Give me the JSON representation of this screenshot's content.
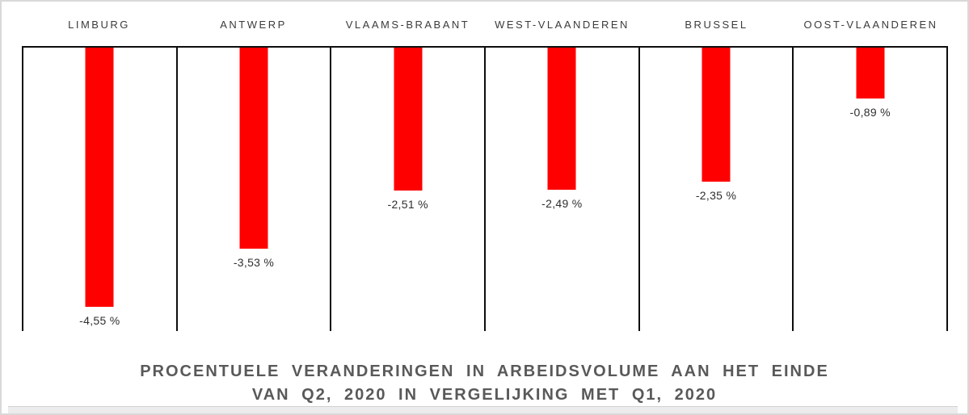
{
  "window": {
    "background": "#ffffff",
    "outer_border_color": "#d9d9d9"
  },
  "chart_data": {
    "type": "bar",
    "title": "PROCENTUELE VERANDERINGEN IN ARBEIDSVOLUME AAN HET EINDE VAN Q2, 2020 IN VERGELIJKING MET Q1, 2020",
    "title_line1": "PROCENTUELE VERANDERINGEN IN ARBEIDSVOLUME AAN HET EINDE",
    "title_line2": "VAN Q2, 2020 IN VERGELIJKING MET Q1, 2020",
    "categories": [
      "LIMBURG",
      "ANTWERP",
      "VLAAMS-BRABANT",
      "WEST-VLAANDEREN",
      "BRUSSEL",
      "OOST-VLAANDEREN"
    ],
    "values": [
      -4.55,
      -3.53,
      -2.51,
      -2.49,
      -2.35,
      -0.89
    ],
    "value_labels": [
      "-4,55 %",
      "-3,53 %",
      "-2,51 %",
      "-2,49 %",
      "-2,35 %",
      "-0,89 %"
    ],
    "ylim": [
      -5,
      0
    ],
    "bars_hang_from_zero_at_top": true,
    "bar_color": "#ff0000",
    "frame_color": "#0d0d0d",
    "title_color": "#595959",
    "value_label_color": "#2f2f2f",
    "category_label_color": "#3b3b3b",
    "grid": "vertical column separators only, plot open at bottom",
    "legend": "none",
    "xlabel": "",
    "ylabel": ""
  }
}
